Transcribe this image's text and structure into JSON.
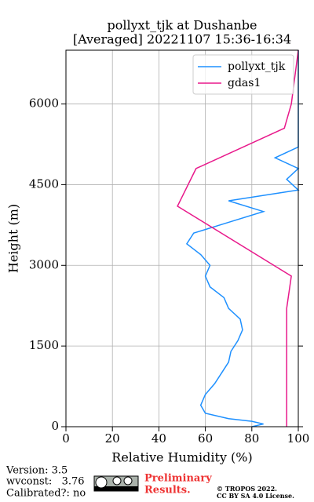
{
  "chart_data": {
    "type": "line",
    "title": "pollyxt_tjk at Dushanbe",
    "subtitle": "[Averaged] 20221107 15:36-16:34",
    "x_label": "Relative Humidity (%)",
    "y_label": "Height (m)",
    "xlim": [
      0,
      100
    ],
    "xticks": [
      0,
      20,
      40,
      60,
      80,
      100
    ],
    "ylim": [
      0,
      7000
    ],
    "yticks": [
      0,
      1500,
      3000,
      4500,
      6000
    ],
    "grid": true,
    "legend": "upper right",
    "series": [
      {
        "name": "pollyxt_tjk",
        "color": "#1e90ff",
        "heights": [
          0,
          50,
          100,
          150,
          250,
          400,
          600,
          800,
          1000,
          1200,
          1400,
          1600,
          1800,
          2000,
          2200,
          2400,
          2600,
          2800,
          3000,
          3200,
          3400,
          3600,
          3800,
          4000,
          4200,
          4400,
          4600,
          4800,
          5000,
          5200,
          5600,
          6000,
          6500,
          7000
        ],
        "values": [
          80,
          85,
          80,
          70,
          60,
          58,
          60,
          64,
          67,
          70,
          71,
          74,
          76,
          75,
          70,
          68,
          62,
          60,
          62,
          58,
          52,
          55,
          70,
          85,
          70,
          100,
          95,
          100,
          90,
          100,
          100,
          100,
          100,
          100
        ]
      },
      {
        "name": "gdas1",
        "color": "#e8198b",
        "heights": [
          0,
          2200,
          2800,
          4100,
          4800,
          5550,
          6000,
          7000
        ],
        "values": [
          95,
          95,
          97,
          48,
          56,
          94,
          97,
          100
        ]
      }
    ]
  },
  "footer": {
    "version": "Version: 3.5",
    "wvconst": "wvconst:   3.76",
    "calibrated": "Calibrated?: no",
    "notice": "Preliminary",
    "notice2": "Results.",
    "copyright": "© TROPOS 2022.",
    "license": "CC BY SA 4.0 License."
  }
}
